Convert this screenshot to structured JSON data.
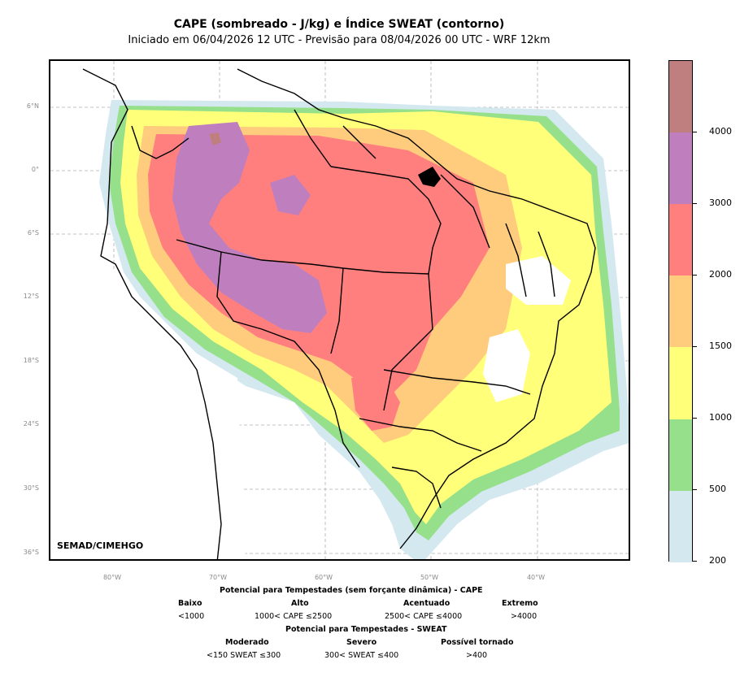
{
  "title": "CAPE (sombreado - J/kg) e Índice SWEAT (contorno)",
  "subtitle": "Iniciado em 06/04/2026 12 UTC - Previsão para 08/04/2026 00 UTC - WRF 12km",
  "credit": "SEMAD/CIMEHGO",
  "lat_labels": [
    "6°N",
    "0°",
    "6°S",
    "12°S",
    "18°S",
    "24°S",
    "30°S",
    "36°S"
  ],
  "lon_labels": [
    "80°W",
    "70°W",
    "60°W",
    "50°W",
    "40°W"
  ],
  "colorbar": {
    "labels": [
      "200",
      "500",
      "1000",
      "1500",
      "2000",
      "3000",
      "4000"
    ],
    "colors": [
      "#d3e9ef",
      "#96e08c",
      "#ffff7a",
      "#ffcc7e",
      "#ff7f7e",
      "#bf7fbf",
      "#bf7f7f"
    ]
  },
  "legend_cape": {
    "header": "Potencial para Tempestades (sem forçante dinâmica) - CAPE",
    "items": [
      {
        "name": "Baixo",
        "range": "<1000"
      },
      {
        "name": "Alto",
        "range": "1000< CAPE ≤2500"
      },
      {
        "name": "Acentuado",
        "range": "2500< CAPE ≤4000"
      },
      {
        "name": "Extremo",
        "range": ">4000"
      }
    ]
  },
  "legend_sweat": {
    "header": "Potencial para Tempestades - SWEAT",
    "items": [
      {
        "name": "Moderado",
        "range": "<150 SWEAT ≤300"
      },
      {
        "name": "Severo",
        "range": "300< SWEAT ≤400"
      },
      {
        "name": "Possível tornado",
        "range": ">400"
      }
    ]
  }
}
